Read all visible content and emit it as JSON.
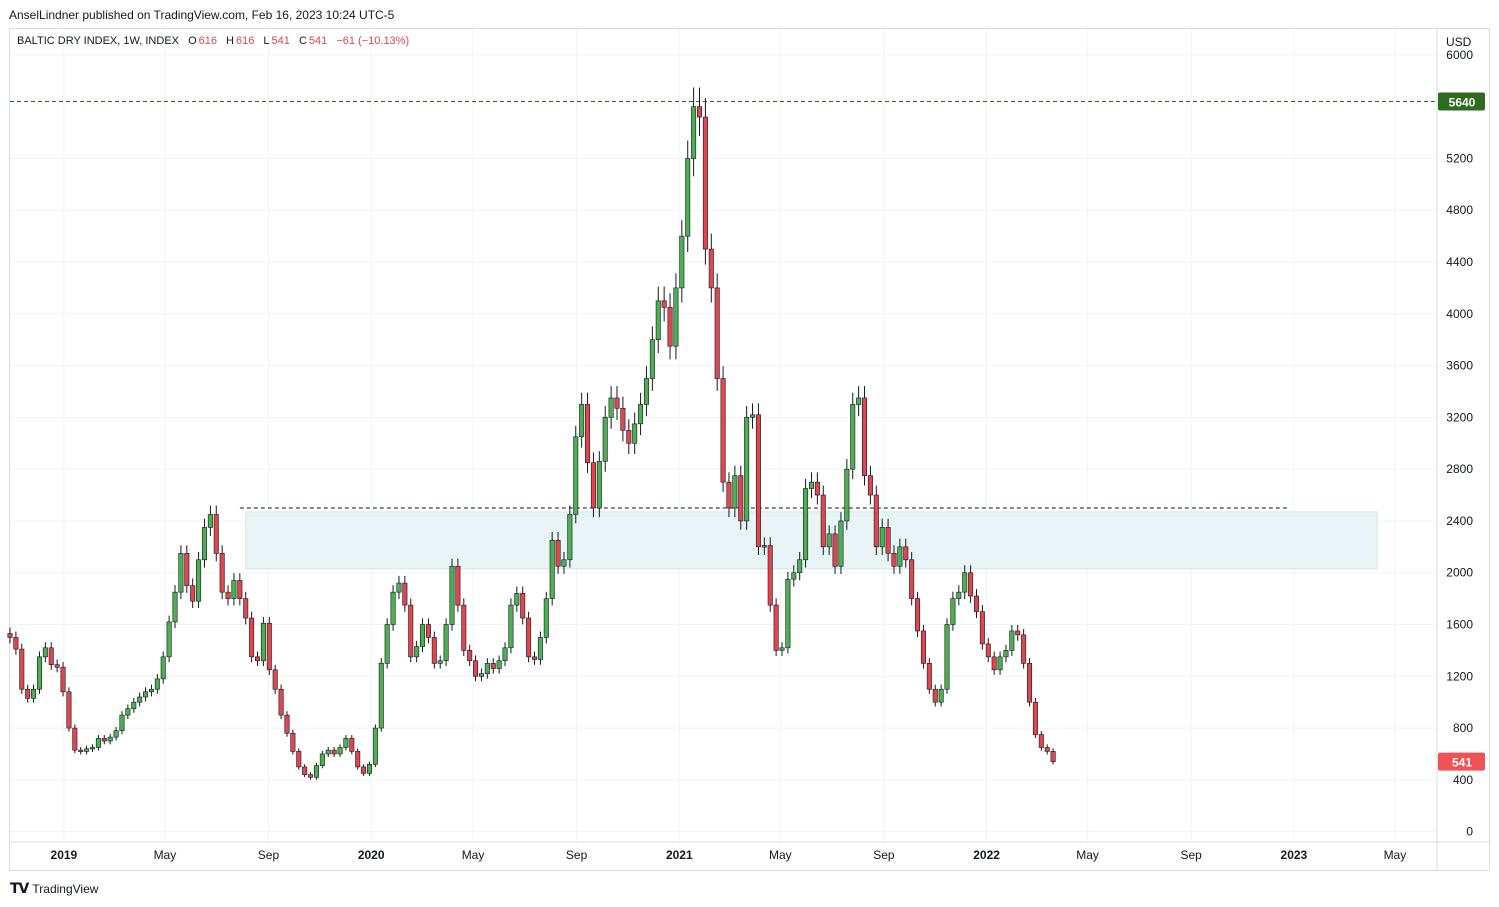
{
  "header": {
    "publisher": "AnselLindner published on TradingView.com, Feb 16, 2023 10:24 UTC-5"
  },
  "legend": {
    "symbol": "BALTIC DRY INDEX, 1W, INDEX",
    "o_label": "O",
    "o_value": "616",
    "h_label": "H",
    "h_value": "616",
    "l_label": "L",
    "l_value": "541",
    "c_label": "C",
    "c_value": "541",
    "change": "−61 (−10.13%)"
  },
  "footer": {
    "brand": "TradingView",
    "logo_icon": "tradingview-logo-icon"
  },
  "colors": {
    "up": "#4caf50",
    "down": "#e0464e",
    "grid": "#f0f3fa",
    "zone": "#e8f4f6",
    "high_line": "#2e6b1f",
    "current_label": "#f05356"
  },
  "chart_data": {
    "type": "candlestick",
    "currency": "USD",
    "y_ticks": [
      0,
      400,
      800,
      1200,
      1600,
      2000,
      2400,
      2800,
      3200,
      3600,
      4000,
      4400,
      4800,
      5200,
      6000
    ],
    "ylim": [
      -80,
      6200
    ],
    "x_ticks": [
      {
        "label": "2019",
        "date": "2019-01-01",
        "bold": true
      },
      {
        "label": "May",
        "date": "2019-05-01",
        "bold": false
      },
      {
        "label": "Sep",
        "date": "2019-09-01",
        "bold": false
      },
      {
        "label": "2020",
        "date": "2020-01-01",
        "bold": true
      },
      {
        "label": "May",
        "date": "2020-05-01",
        "bold": false
      },
      {
        "label": "Sep",
        "date": "2020-09-01",
        "bold": false
      },
      {
        "label": "2021",
        "date": "2021-01-01",
        "bold": true
      },
      {
        "label": "May",
        "date": "2021-05-01",
        "bold": false
      },
      {
        "label": "Sep",
        "date": "2021-09-01",
        "bold": false
      },
      {
        "label": "2022",
        "date": "2022-01-01",
        "bold": true
      },
      {
        "label": "May",
        "date": "2022-05-01",
        "bold": false
      },
      {
        "label": "Sep",
        "date": "2022-09-01",
        "bold": false
      },
      {
        "label": "2023",
        "date": "2023-01-01",
        "bold": true
      },
      {
        "label": "May",
        "date": "2023-05-01",
        "bold": false
      }
    ],
    "xlim": [
      "2018-10-29",
      "2023-06-20"
    ],
    "first_candle_date": "2018-10-29",
    "candle_interval_days": 7,
    "closes": [
      1500,
      1410,
      1100,
      1030,
      1100,
      1350,
      1420,
      1290,
      1270,
      1080,
      800,
      630,
      620,
      640,
      650,
      720,
      700,
      730,
      780,
      900,
      950,
      1000,
      1040,
      1080,
      1100,
      1180,
      1350,
      1620,
      1850,
      2150,
      1900,
      1780,
      2100,
      2350,
      2450,
      2150,
      1850,
      1800,
      1940,
      1800,
      1650,
      1350,
      1320,
      1610,
      1250,
      1100,
      900,
      760,
      620,
      500,
      440,
      420,
      510,
      600,
      630,
      600,
      650,
      720,
      620,
      500,
      450,
      520,
      800,
      1300,
      1600,
      1850,
      1920,
      1750,
      1350,
      1430,
      1600,
      1500,
      1300,
      1320,
      1600,
      2050,
      1750,
      1400,
      1320,
      1200,
      1220,
      1300,
      1260,
      1320,
      1420,
      1750,
      1840,
      1650,
      1350,
      1330,
      1500,
      1800,
      2250,
      2050,
      2100,
      2450,
      3050,
      3300,
      2850,
      2500,
      2860,
      3200,
      3350,
      3270,
      3100,
      3000,
      3150,
      3300,
      3500,
      3800,
      4100,
      4050,
      3750,
      4200,
      4600,
      5200,
      5600,
      5520,
      4500,
      4200,
      3500,
      2700,
      2500,
      2750,
      2400,
      3200,
      3220,
      2200,
      2210,
      1750,
      1400,
      1420,
      1950,
      2000,
      2100,
      2650,
      2700,
      2600,
      2200,
      2300,
      2050,
      2400,
      2800,
      3300,
      3350,
      2750,
      2600,
      2200,
      2350,
      2150,
      2050,
      2200,
      2100,
      1800,
      1550,
      1300,
      1100,
      1000,
      1100,
      1600,
      1800,
      1850,
      2000,
      1820,
      1700,
      1450,
      1350,
      1250,
      1350,
      1400,
      1550,
      1520,
      1300,
      1000,
      750,
      650,
      620,
      541
    ],
    "high_marker": {
      "value": 5640,
      "label": "5640"
    },
    "current_marker": {
      "value": 541,
      "label": "541"
    },
    "resistance_line": {
      "value": 2500,
      "from": "2019-07-29",
      "to": "2022-12-26"
    },
    "support_zone": {
      "low": 2030,
      "high": 2470,
      "from": "2019-08-05",
      "to": "2023-04-10"
    }
  }
}
